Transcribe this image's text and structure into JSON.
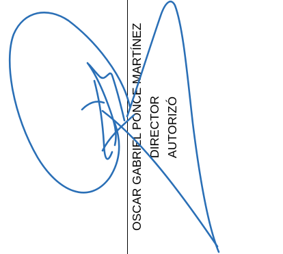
{
  "signatory": {
    "name": "OSCAR GABRIEL PONCE MARTÍNEZ",
    "title": "DIRECTOR",
    "status": "AUTORIZÓ"
  },
  "colors": {
    "ink": "#2a6fb6",
    "rule": "#000000",
    "text": "#000000"
  },
  "icons": {
    "signature": "handwritten-signature-icon"
  }
}
